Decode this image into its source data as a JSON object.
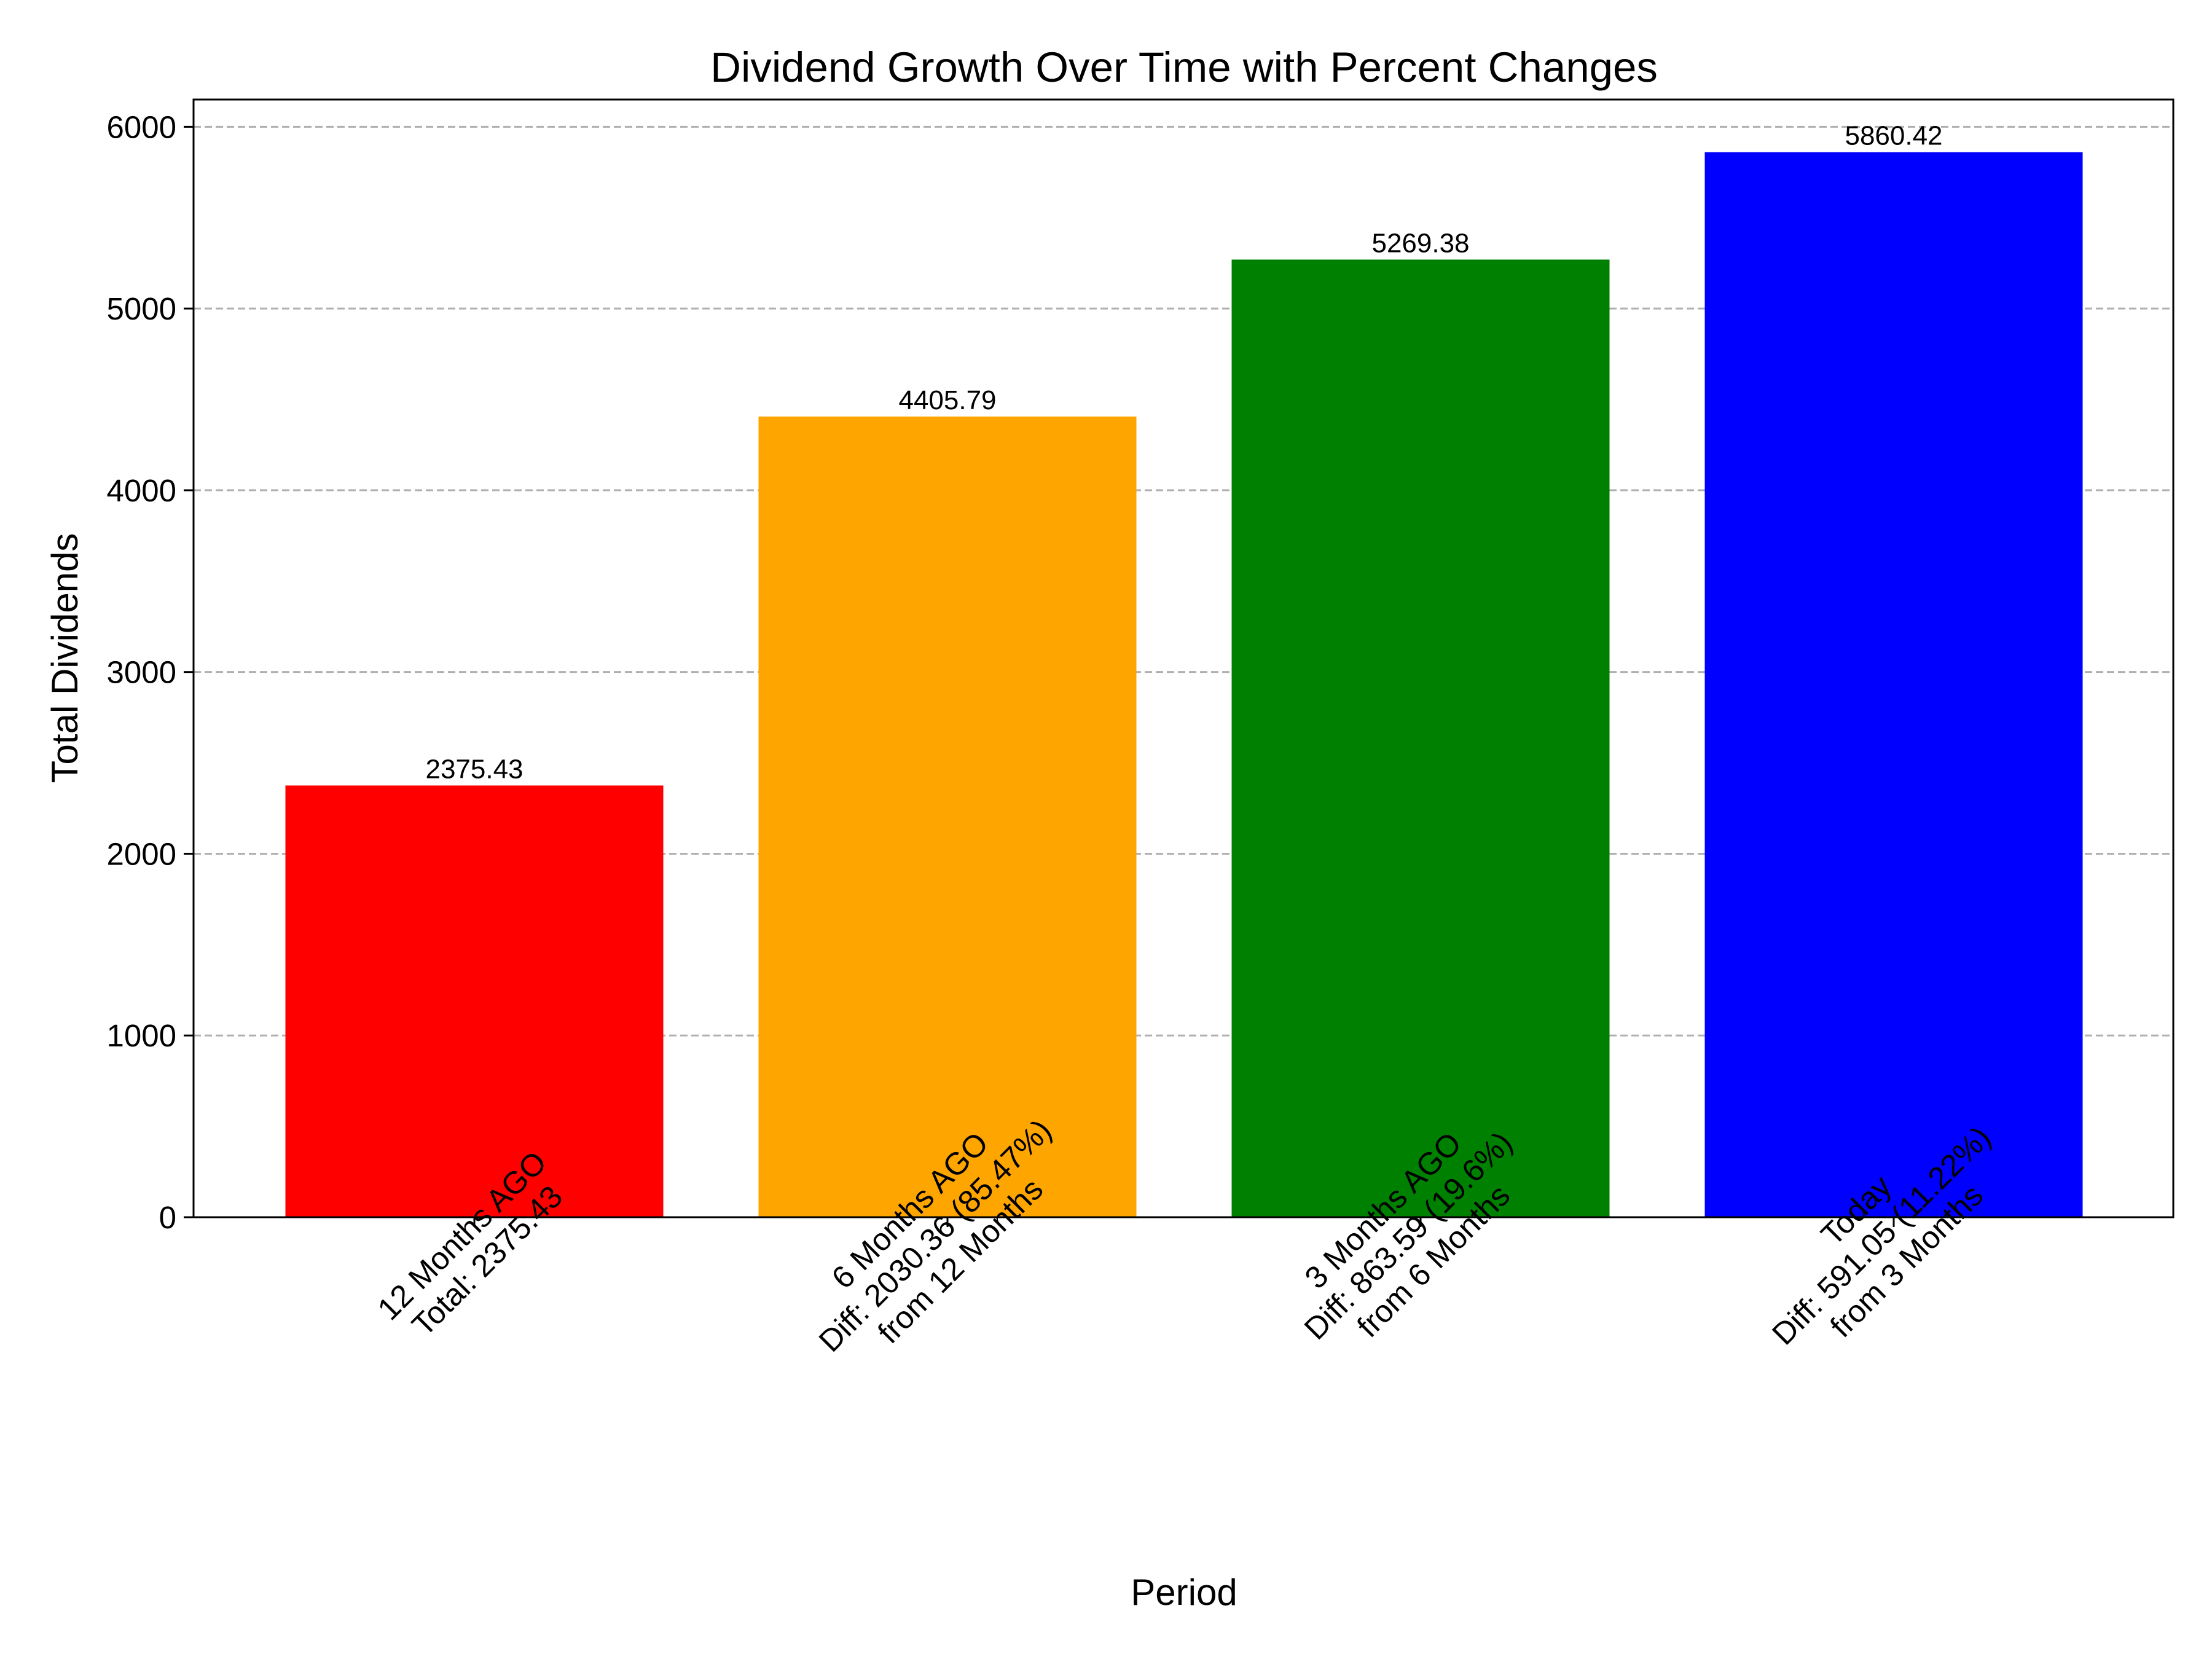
{
  "chart_data": {
    "type": "bar",
    "title": "Dividend Growth Over Time with Percent Changes",
    "xlabel": "Period",
    "ylabel": "Total Dividends",
    "ylim": [
      0,
      6150
    ],
    "yticks": [
      0,
      1000,
      2000,
      3000,
      4000,
      5000,
      6000
    ],
    "grid": "y-dashed",
    "categories": [
      [
        "12 Months AGO",
        "Total: 2375.43"
      ],
      [
        "6 Months AGO",
        "Diff: 2030.36 (85.47%)",
        "from 12 Months"
      ],
      [
        "3 Months AGO",
        "Diff: 863.59 (19.6%)",
        "from 6 Months"
      ],
      [
        "Today",
        "Diff: 591.05 (11.22%)",
        "from 3 Months"
      ]
    ],
    "values": [
      2375.43,
      4405.79,
      5269.38,
      5860.42
    ],
    "data_labels": [
      "2375.43",
      "4405.79",
      "5269.38",
      "5860.42"
    ],
    "colors": [
      "#ff0000",
      "#ffa500",
      "#008000",
      "#0000ff"
    ]
  }
}
